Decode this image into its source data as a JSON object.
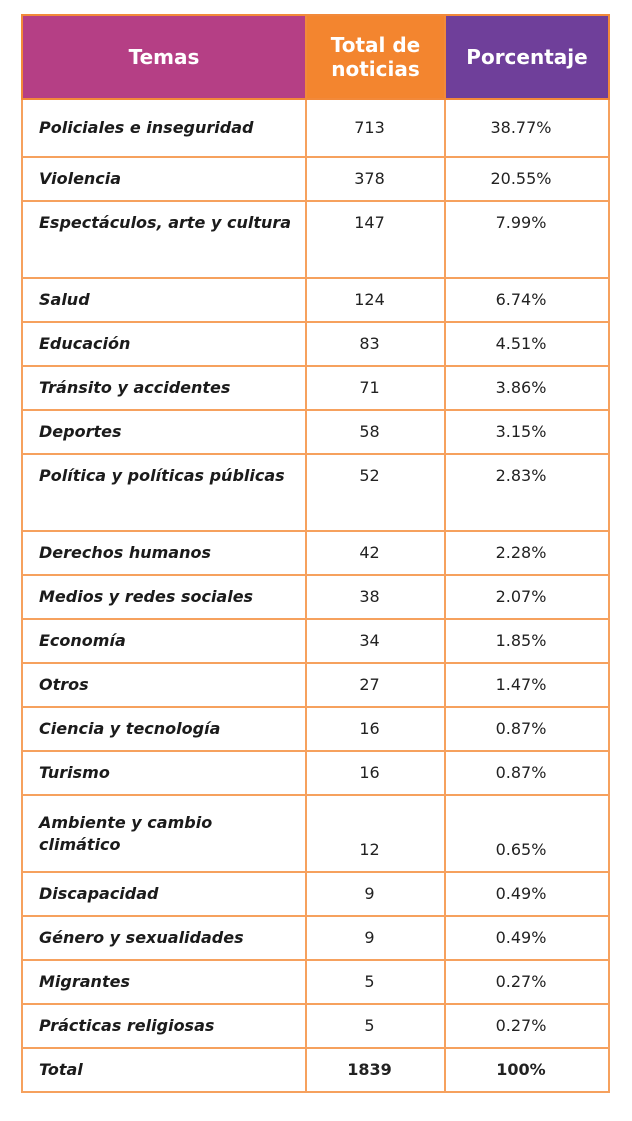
{
  "header": {
    "temas": "Temas",
    "total": "Total de noticias",
    "porcentaje": "Porcentaje"
  },
  "rows": [
    {
      "tema": "Policiales e inseguridad",
      "total": "713",
      "pct": "38.77%"
    },
    {
      "tema": "Violencia",
      "total": "378",
      "pct": "20.55%"
    },
    {
      "tema": "Espectáculos, arte y cultura",
      "total": "147",
      "pct": "7.99%"
    },
    {
      "tema": "Salud",
      "total": "124",
      "pct": "6.74%"
    },
    {
      "tema": "Educación",
      "total": "83",
      "pct": "4.51%"
    },
    {
      "tema": "Tránsito y accidentes",
      "total": "71",
      "pct": "3.86%"
    },
    {
      "tema": "Deportes",
      "total": "58",
      "pct": "3.15%"
    },
    {
      "tema": "Política y políticas públicas",
      "total": "52",
      "pct": "2.83%"
    },
    {
      "tema": "Derechos humanos",
      "total": "42",
      "pct": "2.28%"
    },
    {
      "tema": "Medios y redes sociales",
      "total": "38",
      "pct": "2.07%"
    },
    {
      "tema": "Economía",
      "total": "34",
      "pct": "1.85%"
    },
    {
      "tema": "Otros",
      "total": "27",
      "pct": "1.47%"
    },
    {
      "tema": "Ciencia y tecnología",
      "total": "16",
      "pct": "0.87%"
    },
    {
      "tema": "Turismo",
      "total": "16",
      "pct": "0.87%"
    },
    {
      "tema": "Ambiente y cambio climático",
      "total": "12",
      "pct": "0.65%"
    },
    {
      "tema": "Discapacidad",
      "total": "9",
      "pct": "0.49%"
    },
    {
      "tema": "Género y sexualidades",
      "total": "9",
      "pct": "0.49%"
    },
    {
      "tema": "Migrantes",
      "total": "5",
      "pct": "0.27%"
    },
    {
      "tema": "Prácticas religiosas",
      "total": "5",
      "pct": "0.27%"
    }
  ],
  "total_row": {
    "tema": "Total",
    "total": "1839",
    "pct": "100%"
  },
  "colors": {
    "header_temas": "#b53f85",
    "header_total": "#f3852f",
    "header_porcentaje": "#6f3f9a",
    "border": "#f6a15e"
  }
}
